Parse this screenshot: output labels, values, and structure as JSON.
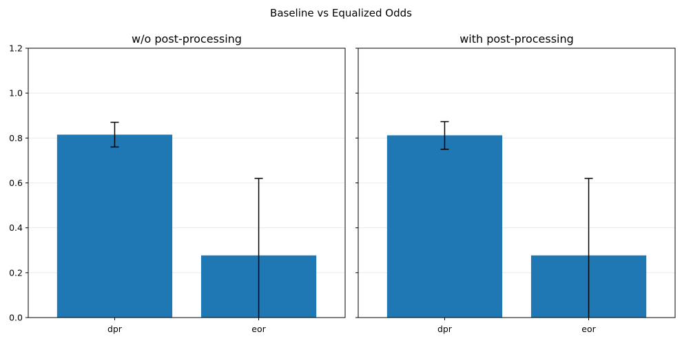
{
  "figure": {
    "title": "Baseline vs Equalized Odds"
  },
  "chart_data": [
    {
      "type": "bar",
      "title": "w/o post-processing",
      "categories": [
        "dpr",
        "eor"
      ],
      "values": [
        0.815,
        0.277
      ],
      "error_low": [
        0.76,
        0.0
      ],
      "error_high": [
        0.87,
        0.62
      ],
      "ylim": [
        0,
        1.2
      ],
      "yticks": [
        "0.0",
        "0.2",
        "0.4",
        "0.6",
        "0.8",
        "1.0",
        "1.2"
      ],
      "grid": "y",
      "color": "#1f77b4"
    },
    {
      "type": "bar",
      "title": "with post-processing",
      "categories": [
        "dpr",
        "eor"
      ],
      "values": [
        0.812,
        0.277
      ],
      "error_low": [
        0.75,
        0.0
      ],
      "error_high": [
        0.873,
        0.62
      ],
      "ylim": [
        0,
        1.2
      ],
      "yticks": [],
      "grid": "y",
      "color": "#1f77b4"
    }
  ]
}
